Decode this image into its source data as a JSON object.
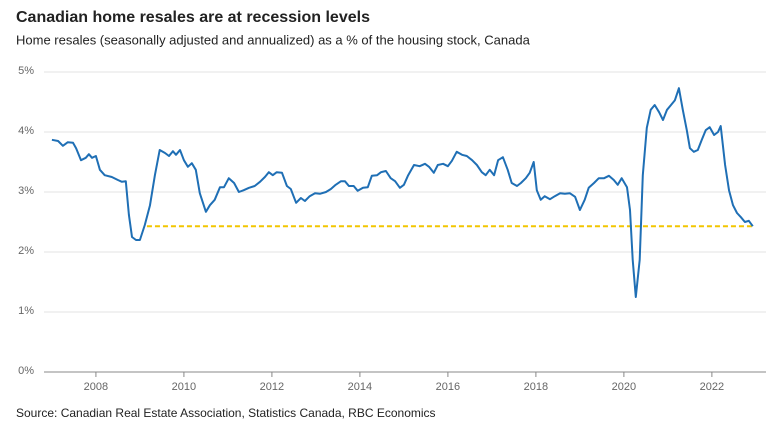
{
  "chart_data": {
    "type": "line",
    "title": "Canadian home resales are at recession levels",
    "subtitle": "Home resales (seasonally adjusted and annualized) as a % of the housing stock, Canada",
    "source": "Source: Canadian Real Estate Association, Statistics Canada, RBC Economics",
    "color": "#1f6fb5",
    "x": [
      2007.0,
      2007.14,
      2007.25,
      2007.36,
      2007.48,
      2007.55,
      2007.66,
      2007.77,
      2007.84,
      2007.91,
      2008.0,
      2008.09,
      2008.2,
      2008.36,
      2008.5,
      2008.59,
      2008.68,
      2008.75,
      2008.82,
      2008.91,
      2009.0,
      2009.11,
      2009.23,
      2009.34,
      2009.45,
      2009.57,
      2009.66,
      2009.75,
      2009.82,
      2009.91,
      2010.0,
      2010.09,
      2010.18,
      2010.27,
      2010.36,
      2010.5,
      2010.59,
      2010.7,
      2010.82,
      2010.91,
      2011.02,
      2011.14,
      2011.25,
      2011.36,
      2011.48,
      2011.61,
      2011.73,
      2011.84,
      2011.93,
      2012.02,
      2012.11,
      2012.23,
      2012.34,
      2012.43,
      2012.55,
      2012.66,
      2012.75,
      2012.86,
      2012.98,
      2013.09,
      2013.23,
      2013.34,
      2013.45,
      2013.57,
      2013.66,
      2013.75,
      2013.86,
      2013.95,
      2014.07,
      2014.18,
      2014.27,
      2014.39,
      2014.48,
      2014.59,
      2014.7,
      2014.8,
      2014.91,
      2015.0,
      2015.09,
      2015.23,
      2015.36,
      2015.48,
      2015.57,
      2015.68,
      2015.77,
      2015.89,
      2016.0,
      2016.09,
      2016.2,
      2016.32,
      2016.43,
      2016.55,
      2016.66,
      2016.77,
      2016.86,
      2016.95,
      2017.05,
      2017.14,
      2017.25,
      2017.36,
      2017.45,
      2017.57,
      2017.66,
      2017.77,
      2017.86,
      2017.95,
      2018.02,
      2018.11,
      2018.2,
      2018.32,
      2018.43,
      2018.55,
      2018.66,
      2018.77,
      2018.89,
      2019.0,
      2019.11,
      2019.2,
      2019.32,
      2019.43,
      2019.55,
      2019.66,
      2019.77,
      2019.86,
      2019.95,
      2020.07,
      2020.14,
      2020.2,
      2020.27,
      2020.36,
      2020.43,
      2020.52,
      2020.61,
      2020.7,
      2020.8,
      2020.89,
      2020.98,
      2021.07,
      2021.16,
      2021.25,
      2021.34,
      2021.43,
      2021.5,
      2021.59,
      2021.68,
      2021.77,
      2021.86,
      2021.95,
      2022.05,
      2022.14,
      2022.2,
      2022.3,
      2022.39,
      2022.48,
      2022.57,
      2022.66,
      2022.75,
      2022.84,
      2022.93
    ],
    "values": [
      3.87,
      3.85,
      3.77,
      3.83,
      3.82,
      3.73,
      3.53,
      3.57,
      3.63,
      3.57,
      3.6,
      3.37,
      3.28,
      3.25,
      3.2,
      3.17,
      3.18,
      2.62,
      2.25,
      2.2,
      2.2,
      2.45,
      2.78,
      3.28,
      3.7,
      3.65,
      3.6,
      3.68,
      3.62,
      3.7,
      3.53,
      3.42,
      3.48,
      3.37,
      2.98,
      2.67,
      2.78,
      2.87,
      3.08,
      3.08,
      3.23,
      3.15,
      3.0,
      3.03,
      3.07,
      3.1,
      3.17,
      3.25,
      3.33,
      3.28,
      3.33,
      3.32,
      3.1,
      3.05,
      2.82,
      2.9,
      2.85,
      2.93,
      2.98,
      2.97,
      3.0,
      3.05,
      3.12,
      3.18,
      3.18,
      3.1,
      3.1,
      3.02,
      3.07,
      3.08,
      3.27,
      3.28,
      3.33,
      3.35,
      3.23,
      3.18,
      3.07,
      3.12,
      3.27,
      3.45,
      3.43,
      3.47,
      3.42,
      3.32,
      3.45,
      3.47,
      3.43,
      3.52,
      3.67,
      3.62,
      3.6,
      3.53,
      3.45,
      3.33,
      3.28,
      3.37,
      3.28,
      3.53,
      3.58,
      3.37,
      3.15,
      3.1,
      3.15,
      3.23,
      3.32,
      3.5,
      3.03,
      2.87,
      2.93,
      2.88,
      2.93,
      2.98,
      2.97,
      2.98,
      2.92,
      2.7,
      2.87,
      3.07,
      3.15,
      3.23,
      3.23,
      3.27,
      3.2,
      3.12,
      3.23,
      3.08,
      2.7,
      1.87,
      1.25,
      1.87,
      3.28,
      4.07,
      4.37,
      4.45,
      4.33,
      4.2,
      4.37,
      4.45,
      4.53,
      4.73,
      4.37,
      4.03,
      3.73,
      3.67,
      3.7,
      3.87,
      4.03,
      4.08,
      3.95,
      4.0,
      4.1,
      3.45,
      3.03,
      2.78,
      2.65,
      2.58,
      2.5,
      2.52,
      2.43
    ],
    "reference_line": {
      "value": 2.43,
      "x": [
        2009.16,
        2022.93
      ],
      "color": "#f2c500"
    },
    "xlim": [
      2006.82,
      2023.23
    ],
    "xticks": [
      2008,
      2010,
      2012,
      2014,
      2016,
      2018,
      2020,
      2022
    ],
    "ylim": [
      0,
      5
    ],
    "yticks": [
      {
        "value": 0,
        "label": "0%"
      },
      {
        "value": 1,
        "label": "1%"
      },
      {
        "value": 2,
        "label": "2%"
      },
      {
        "value": 3,
        "label": "3%"
      },
      {
        "value": 4,
        "label": "4%"
      },
      {
        "value": 5,
        "label": "5%"
      }
    ],
    "grid": true
  }
}
